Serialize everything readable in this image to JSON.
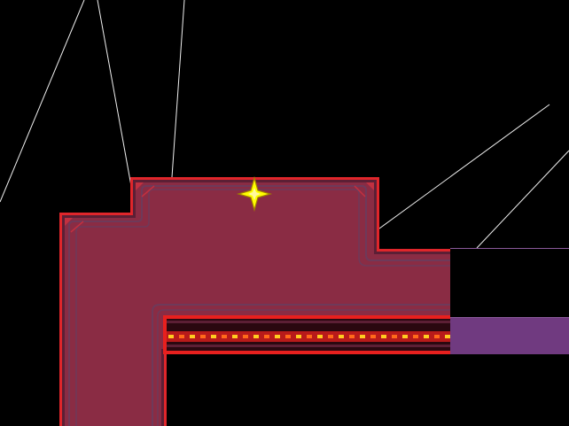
{
  "scene": {
    "background": "#000000",
    "floor_color": "#8a2c44",
    "border_red": "#e0262b",
    "border_dark": "#5c1f35",
    "inner_line": "#6e3a5a",
    "corner_mark": "#c23040",
    "wall_line": "#f0f0f0",
    "purple_block": "#703a80",
    "purple_edge": "#8a5a9a",
    "save_point": {
      "icon": "sparkle-star-icon",
      "color": "#ffff00",
      "outline": "#a08000"
    },
    "conveyor": {
      "track_dark": "#2a0810",
      "track_red": "#e8201e",
      "stripe_yellow": "#ffcc20",
      "stripe_orange": "#ff6a1a"
    }
  }
}
